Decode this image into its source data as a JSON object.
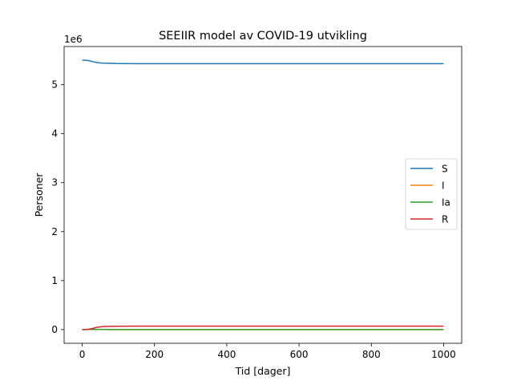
{
  "chart_data": {
    "type": "line",
    "title": "SEEIIR model av COVID-19 utvikling",
    "xlabel": "Tid [dager]",
    "ylabel": "Personer",
    "y_offset_label": "1e6",
    "xlim": [
      -50,
      1050
    ],
    "ylim": [
      -0.28,
      5.78
    ],
    "y_unit_multiplier": 1000000,
    "xticks": [
      0,
      200,
      400,
      600,
      800,
      1000
    ],
    "yticks": [
      0,
      1,
      2,
      3,
      4,
      5
    ],
    "grid": false,
    "legend_position": "center-right",
    "series": [
      {
        "name": "S",
        "color": "#1f77b4",
        "x": [
          0,
          10,
          20,
          30,
          40,
          50,
          60,
          80,
          100,
          150,
          200,
          400,
          600,
          800,
          1000
        ],
        "y": [
          5.5,
          5.5,
          5.49,
          5.47,
          5.455,
          5.445,
          5.44,
          5.435,
          5.432,
          5.43,
          5.43,
          5.43,
          5.43,
          5.43,
          5.43
        ]
      },
      {
        "name": "I",
        "color": "#ff7f0e",
        "x": [
          0,
          20,
          40,
          60,
          80,
          100,
          200,
          400,
          600,
          800,
          1000
        ],
        "y": [
          0,
          0.002,
          0.004,
          0.003,
          0.001,
          0,
          0,
          0,
          0,
          0,
          0
        ]
      },
      {
        "name": "Ia",
        "color": "#2ca02c",
        "x": [
          0,
          20,
          40,
          60,
          80,
          100,
          200,
          400,
          600,
          800,
          1000
        ],
        "y": [
          0,
          0.002,
          0.003,
          0.002,
          0.001,
          0,
          0,
          0,
          0,
          0,
          0
        ]
      },
      {
        "name": "R",
        "color": "#d62728",
        "x": [
          0,
          10,
          20,
          30,
          40,
          50,
          60,
          80,
          100,
          150,
          200,
          400,
          600,
          800,
          1000
        ],
        "y": [
          0,
          0,
          0.01,
          0.025,
          0.045,
          0.055,
          0.062,
          0.066,
          0.068,
          0.07,
          0.07,
          0.07,
          0.07,
          0.07,
          0.07
        ]
      }
    ]
  }
}
